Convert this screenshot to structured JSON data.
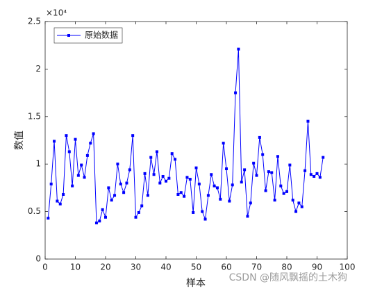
{
  "chart_data": {
    "type": "line",
    "y_exponent_label": "×10⁴",
    "xlabel": "样本",
    "ylabel": "数值",
    "legend_location": "northwest",
    "watermark": "CSDN @随风飘摇的土木狗",
    "x": [
      1,
      2,
      3,
      4,
      5,
      6,
      7,
      8,
      9,
      10,
      11,
      12,
      13,
      14,
      15,
      16,
      17,
      18,
      19,
      20,
      21,
      22,
      23,
      24,
      25,
      26,
      27,
      28,
      29,
      30,
      31,
      32,
      33,
      34,
      35,
      36,
      37,
      38,
      39,
      40,
      41,
      42,
      43,
      44,
      45,
      46,
      47,
      48,
      49,
      50,
      51,
      52,
      53,
      54,
      55,
      56,
      57,
      58,
      59,
      60,
      61,
      62,
      63,
      64,
      65,
      66,
      67,
      68,
      69,
      70,
      71,
      72,
      73,
      74,
      75,
      76,
      77,
      78,
      79,
      80,
      81,
      82,
      83,
      84,
      85,
      86,
      87,
      88,
      89,
      90,
      91,
      92
    ],
    "series": [
      {
        "name": "原始数据",
        "color": "#0000ff",
        "values": [
          0.43,
          0.79,
          1.24,
          0.61,
          0.58,
          0.68,
          1.3,
          1.13,
          0.77,
          1.26,
          0.88,
          0.99,
          0.86,
          1.09,
          1.22,
          1.32,
          0.38,
          0.4,
          0.52,
          0.44,
          0.75,
          0.62,
          0.67,
          1.0,
          0.79,
          0.7,
          0.8,
          0.94,
          1.3,
          0.44,
          0.49,
          0.56,
          0.9,
          0.67,
          1.07,
          0.89,
          1.13,
          0.8,
          0.87,
          0.82,
          0.85,
          1.11,
          1.05,
          0.68,
          0.7,
          0.66,
          0.86,
          0.84,
          0.49,
          0.96,
          0.79,
          0.5,
          0.42,
          0.67,
          0.89,
          0.77,
          0.75,
          0.63,
          1.22,
          0.95,
          0.61,
          0.78,
          1.75,
          2.21,
          0.81,
          0.94,
          0.45,
          0.59,
          1.01,
          0.88,
          1.28,
          1.1,
          0.72,
          0.92,
          0.91,
          0.62,
          1.08,
          0.77,
          0.69,
          0.71,
          0.99,
          0.62,
          0.5,
          0.59,
          0.55,
          0.93,
          1.45,
          0.89,
          0.87,
          0.9,
          0.86,
          1.07
        ]
      }
    ],
    "xlim": [
      0,
      100
    ],
    "xticks": [
      0,
      10,
      20,
      30,
      40,
      50,
      60,
      70,
      80,
      90,
      100
    ],
    "ylim": [
      0,
      2.5
    ],
    "yticks": [
      0,
      0.5,
      1,
      1.5,
      2,
      2.5
    ]
  }
}
